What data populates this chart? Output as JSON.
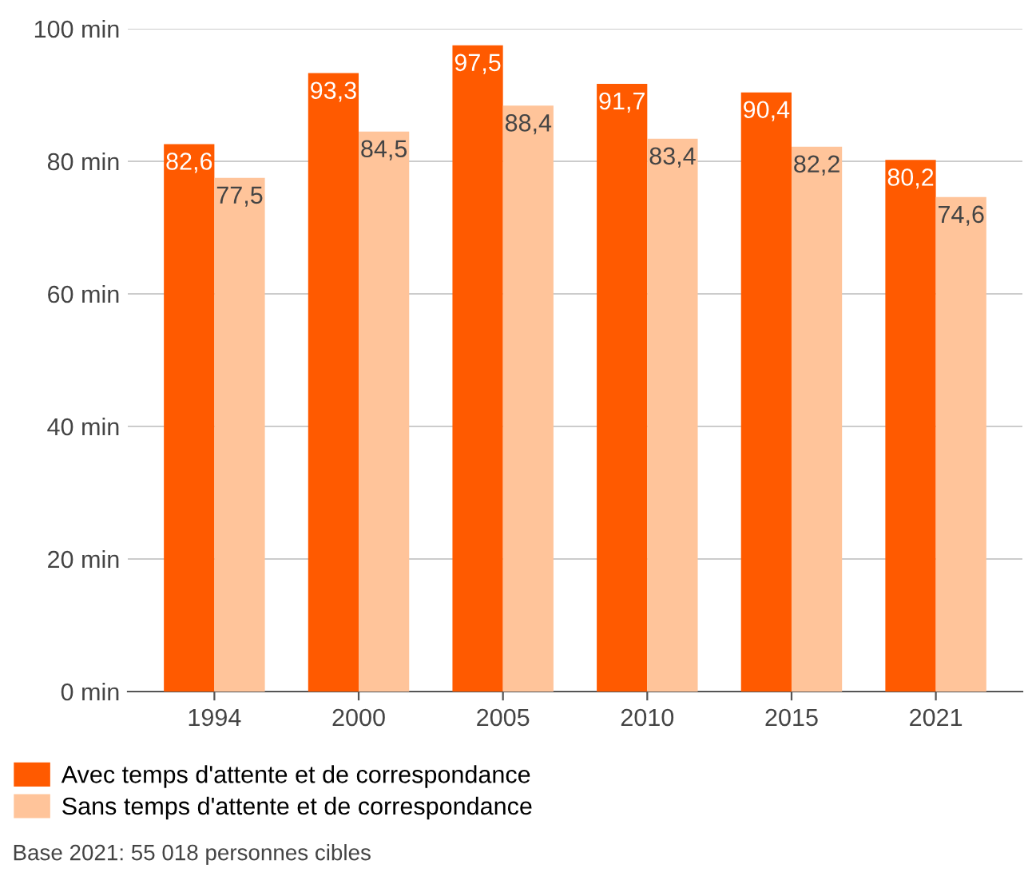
{
  "chart_data": {
    "type": "bar",
    "categories": [
      "1994",
      "2000",
      "2005",
      "2010",
      "2015",
      "2021"
    ],
    "series": [
      {
        "name": "Avec temps d'attente et de correspondance",
        "color": "#ff5a00",
        "values": [
          82.6,
          93.3,
          97.5,
          91.7,
          90.4,
          80.2
        ],
        "value_labels": [
          "82,6",
          "93,3",
          "97,5",
          "91,7",
          "90,4",
          "80,2"
        ]
      },
      {
        "name": "Sans temps d'attente et de correspondance",
        "color": "#ffc49a",
        "values": [
          77.5,
          84.5,
          88.4,
          83.4,
          82.2,
          74.6
        ],
        "value_labels": [
          "77,5",
          "84,5",
          "88,4",
          "83,4",
          "82,2",
          "74,6"
        ]
      }
    ],
    "ylim": [
      0,
      100
    ],
    "yticks": [
      {
        "value": 0,
        "label": "0 min"
      },
      {
        "value": 20,
        "label": "20 min"
      },
      {
        "value": 40,
        "label": "40 min"
      },
      {
        "value": 60,
        "label": "60 min"
      },
      {
        "value": 80,
        "label": "80 min"
      },
      {
        "value": 100,
        "label": "100 min"
      }
    ],
    "grid": "y",
    "legend": "bottom left",
    "annotations": [
      "Base 2021: 55 018 personnes cibles"
    ]
  }
}
